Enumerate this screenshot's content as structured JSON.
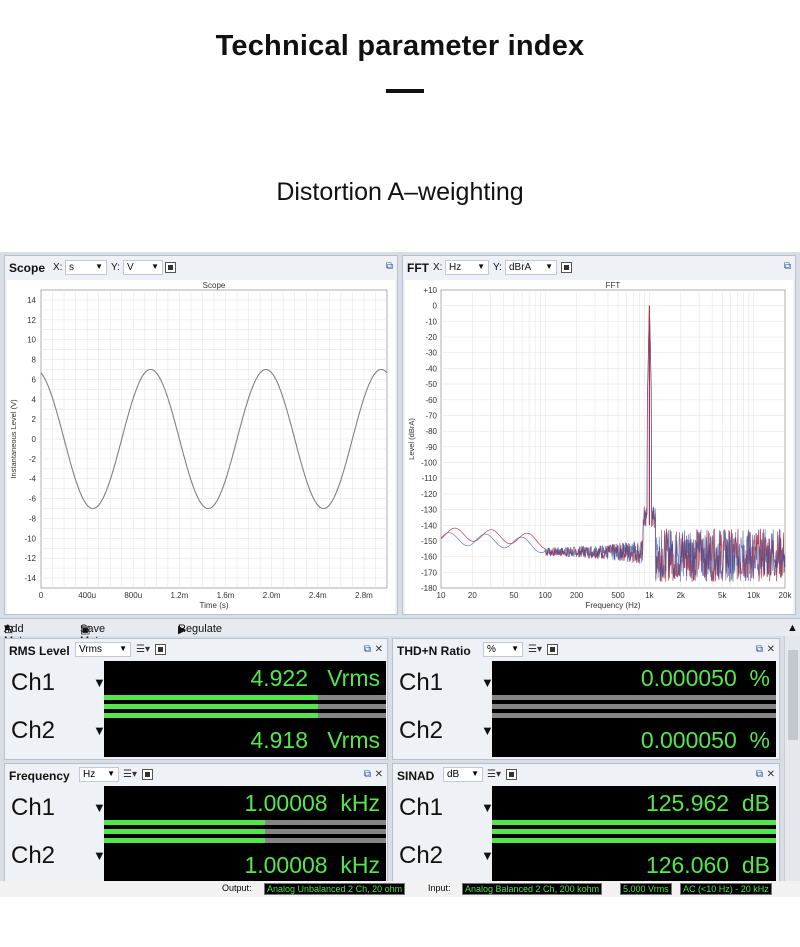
{
  "hero": {
    "title": "Technical parameter index",
    "subtitle": "Distortion A–weighting"
  },
  "scope": {
    "name": "Scope",
    "x_label": "X:",
    "x_unit": "s",
    "y_label": "Y:",
    "y_unit": "V",
    "plot_title": "Scope",
    "chart_data": {
      "type": "line",
      "title": "Scope",
      "xlabel": "Time (s)",
      "ylabel": "Instantaneous Level (V)",
      "xlim": [
        0,
        0.003
      ],
      "ylim": [
        -15,
        15
      ],
      "x_ticks": [
        "0",
        "400u",
        "800u",
        "1.2m",
        "1.6m",
        "2.0m",
        "2.4m",
        "2.8m"
      ],
      "y_ticks": [
        "14",
        "12",
        "10",
        "8",
        "6",
        "4",
        "2",
        "0",
        "-2",
        "-4",
        "-6",
        "-8",
        "-10",
        "-12",
        "-14"
      ],
      "series": [
        {
          "frequency_hz": 1000,
          "amplitude_v": 7.0,
          "color": "#808080"
        }
      ]
    }
  },
  "fft": {
    "name": "FFT",
    "x_label": "X:",
    "x_unit": "Hz",
    "y_label": "Y:",
    "y_unit": "dBrA",
    "plot_title": "FFT",
    "chart_data": {
      "type": "line",
      "title": "FFT",
      "xlabel": "Frequency (Hz)",
      "ylabel": "Level (dBrA)",
      "x_scale": "log",
      "xlim": [
        10,
        20000
      ],
      "ylim": [
        -180,
        10
      ],
      "x_ticks": [
        "10",
        "20",
        "50",
        "100",
        "200",
        "500",
        "1k",
        "2k",
        "5k",
        "10k",
        "20k"
      ],
      "y_ticks": [
        "+10",
        "0",
        "-10",
        "-20",
        "-30",
        "-40",
        "-50",
        "-60",
        "-70",
        "-80",
        "-90",
        "-100",
        "-110",
        "-120",
        "-130",
        "-140",
        "-150",
        "-160",
        "-170",
        "-180"
      ],
      "peak": {
        "x": 1000,
        "y": 0
      },
      "noise_floor_db": -155,
      "series": [
        {
          "color": "#b03040"
        },
        {
          "color": "#3a4f9a"
        }
      ]
    }
  },
  "toolbar": {
    "add_meter": "Add Meter",
    "save_meter_data": "Save Meter Data",
    "regulate": "Regulate"
  },
  "meters": {
    "rms": {
      "name": "RMS Level",
      "unit_select": "Vrms",
      "ch1_label": "Ch1",
      "ch2_label": "Ch2",
      "ch1_value": "4.922",
      "ch2_value": "4.918",
      "unit": "Vrms",
      "bar_fraction": 0.76
    },
    "thdn": {
      "name": "THD+N Ratio",
      "unit_select": "%",
      "ch1_label": "Ch1",
      "ch2_label": "Ch2",
      "ch1_value": "0.000050",
      "ch2_value": "0.000050",
      "unit": "%",
      "bar_fraction": 0.0
    },
    "freq": {
      "name": "Frequency",
      "unit_select": "Hz",
      "ch1_label": "Ch1",
      "ch2_label": "Ch2",
      "ch1_value": "1.00008",
      "ch2_value": "1.00008",
      "unit": "kHz",
      "bar_fraction": 0.57
    },
    "sinad": {
      "name": "SINAD",
      "unit_select": "dB",
      "ch1_label": "Ch1",
      "ch2_label": "Ch2",
      "ch1_value": "125.962",
      "ch2_value": "126.060",
      "unit": "dB",
      "bar_fraction": 1.0
    }
  },
  "status": {
    "output_label": "Output:",
    "output_value": "Analog Unbalanced 2 Ch, 20 ohm",
    "input_label": "Input:",
    "input_value": "Analog Balanced 2 Ch, 200 kohm",
    "level_value": "5.000 Vrms",
    "filter_value": "AC (<10 Hz) - 20 kHz"
  },
  "colors": {
    "bar_green": "#54e64c",
    "bar_gray": "#858585",
    "reading_green": "#54e64c"
  }
}
